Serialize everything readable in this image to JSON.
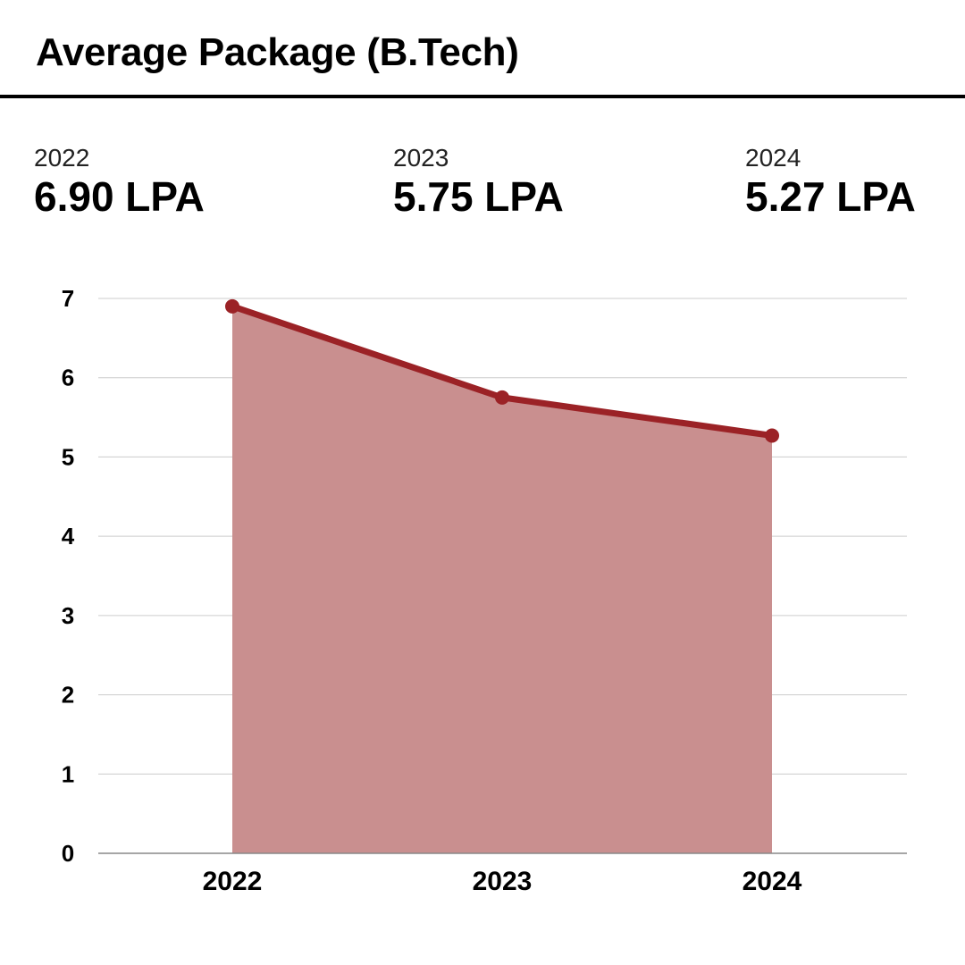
{
  "header": {
    "title": "Average Package (B.Tech)"
  },
  "stats": [
    {
      "year": "2022",
      "value": "6.90 LPA"
    },
    {
      "year": "2023",
      "value": "5.75 LPA"
    },
    {
      "year": "2024",
      "value": "5.27 LPA"
    }
  ],
  "colors": {
    "line": "#9b2226",
    "area": "#c98f8f",
    "grid": "#cccccc",
    "axis": "#888888"
  },
  "chart_data": {
    "type": "area",
    "categories": [
      "2022",
      "2023",
      "2024"
    ],
    "series": [
      {
        "values": [
          6.9,
          5.75,
          5.27
        ]
      }
    ],
    "ylim": [
      0,
      7
    ],
    "yticks": [
      "0",
      "1",
      "2",
      "3",
      "4",
      "5",
      "6",
      "7"
    ],
    "grid": true,
    "xlabel": "",
    "ylabel": ""
  }
}
